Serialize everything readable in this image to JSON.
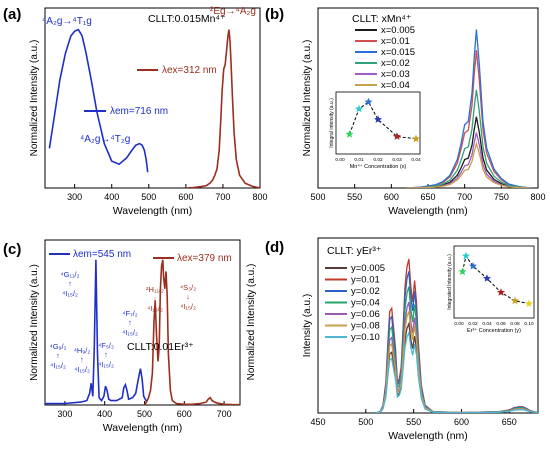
{
  "chart_data": [
    {
      "panel": "(a)",
      "type": "line",
      "annotation": "CLLT:0.015Mn⁴⁺",
      "xlabel": "Wavelength (nm)",
      "ylabel": "Normalized Intensity (a.u.)",
      "xlim": [
        220,
        800
      ],
      "xticks": [
        300,
        400,
        500,
        600,
        700,
        800
      ],
      "series": [
        {
          "name": "λem=716 nm",
          "color": "#1f2fc8",
          "x": [
            232,
            245,
            260,
            275,
            290,
            300,
            310,
            320,
            330,
            345,
            360,
            380,
            400,
            420,
            440,
            455,
            465,
            475,
            482,
            488,
            493,
            497
          ],
          "y": [
            0.25,
            0.45,
            0.68,
            0.85,
            0.96,
            0.99,
            1.0,
            0.96,
            0.86,
            0.68,
            0.48,
            0.28,
            0.17,
            0.15,
            0.19,
            0.24,
            0.27,
            0.28,
            0.27,
            0.24,
            0.18,
            0.1
          ]
        },
        {
          "name": "λex=312 nm",
          "color": "#9b2e1c",
          "x": [
            600,
            620,
            640,
            655,
            665,
            672,
            678,
            684,
            690,
            694,
            698,
            702,
            706,
            710,
            713,
            716,
            719,
            722,
            726,
            730,
            736,
            745,
            760,
            780,
            800
          ],
          "y": [
            0,
            0.003,
            0.008,
            0.015,
            0.03,
            0.05,
            0.08,
            0.12,
            0.24,
            0.42,
            0.62,
            0.75,
            0.78,
            0.87,
            0.95,
            1.0,
            0.93,
            0.78,
            0.55,
            0.35,
            0.18,
            0.08,
            0.03,
            0.01,
            0
          ]
        }
      ],
      "labels": [
        "⁴A₂g→⁴T₁g",
        "⁴A₂g→⁴T₂g",
        "²Eg→⁴A₂g"
      ]
    },
    {
      "panel": "(b)",
      "type": "line",
      "legend_title": "CLLT: xMn⁴⁺",
      "xlabel": "Wavelength (nm)",
      "ylabel": "Normalized Intensity (a.u.)",
      "xlim": [
        500,
        800
      ],
      "xticks": [
        500,
        550,
        600,
        650,
        700,
        750,
        800
      ],
      "x": [
        620,
        640,
        660,
        670,
        680,
        690,
        695,
        700,
        705,
        710,
        713,
        716,
        720,
        725,
        730,
        740,
        750,
        760,
        775,
        790
      ],
      "shape": [
        0,
        0.005,
        0.02,
        0.04,
        0.08,
        0.18,
        0.28,
        0.4,
        0.42,
        0.6,
        0.82,
        1.0,
        0.78,
        0.42,
        0.25,
        0.12,
        0.06,
        0.025,
        0.008,
        0
      ],
      "series": [
        {
          "name": "x=0.005",
          "color": "#1a1a1a",
          "peak": 0.45
        },
        {
          "name": "x=0.01",
          "color": "#d14f4f",
          "peak": 0.87
        },
        {
          "name": "x=0.015",
          "color": "#2c6fd6",
          "peak": 1.0
        },
        {
          "name": "x=0.02",
          "color": "#2fa37a",
          "peak": 0.62
        },
        {
          "name": "x=0.03",
          "color": "#a25cc8",
          "peak": 0.35
        },
        {
          "name": "x=0.04",
          "color": "#c9a04a",
          "peak": 0.28
        }
      ],
      "inset": {
        "xlabel": "Mn⁴⁺ Concentration (x)",
        "ylabel": "Integral intensity (a.u.)",
        "xticks": [
          "0.00",
          "0.01",
          "0.02",
          "0.03",
          "0.04"
        ],
        "x": [
          0.005,
          0.01,
          0.015,
          0.02,
          0.03,
          0.04
        ],
        "y": [
          0.3,
          0.85,
          1.0,
          0.62,
          0.25,
          0.2
        ],
        "colors": [
          "#2fd35a",
          "#2fc8d8",
          "#2c6fd6",
          "#2a3bb8",
          "#b22020",
          "#c9a020"
        ]
      }
    },
    {
      "panel": "(c)",
      "type": "line",
      "annotation": "CLLT:0.01Er³⁺",
      "xlabel": "Wavelength (nm)",
      "ylabel": "Normalized Intensity (a.u.)",
      "xlim": [
        250,
        740
      ],
      "xticks": [
        300,
        400,
        500,
        600,
        700
      ],
      "series": [
        {
          "name": "λem=545 nm",
          "color": "#1f2fc8",
          "x": [
            250,
            300,
            340,
            355,
            362,
            366,
            370,
            374,
            378,
            382,
            386,
            392,
            398,
            402,
            406,
            410,
            416,
            430,
            444,
            448,
            452,
            456,
            460,
            470,
            478,
            486,
            490,
            494,
            498,
            506
          ],
          "y": [
            0.01,
            0.01,
            0.02,
            0.03,
            0.08,
            0.15,
            0.06,
            0.4,
            1.0,
            0.35,
            0.05,
            0.03,
            0.06,
            0.13,
            0.1,
            0.04,
            0.03,
            0.03,
            0.05,
            0.12,
            0.14,
            0.1,
            0.04,
            0.05,
            0.08,
            0.2,
            0.25,
            0.18,
            0.06,
            0.02
          ]
        },
        {
          "name": "λex=379 nm",
          "color": "#9b2e1c",
          "x": [
            500,
            505,
            510,
            515,
            520,
            524,
            527,
            530,
            534,
            537,
            540,
            543,
            546,
            548,
            551,
            554,
            557,
            560,
            565,
            570,
            580,
            600,
            620,
            640,
            655,
            660,
            665,
            670,
            680,
            700,
            720,
            740
          ],
          "y": [
            0,
            0.02,
            0.05,
            0.1,
            0.22,
            0.58,
            0.72,
            0.5,
            0.3,
            0.4,
            0.8,
            0.96,
            1.0,
            0.88,
            0.8,
            0.92,
            0.75,
            0.35,
            0.1,
            0.03,
            0.01,
            0.005,
            0.005,
            0.01,
            0.02,
            0.04,
            0.05,
            0.03,
            0.015,
            0.005,
            0.003,
            0.002
          ]
        }
      ],
      "labels": [
        "⁴G₁₁/₂",
        "⁴I₁₅/₂",
        "⁴G₉/₂",
        "⁴I₁₅/₂",
        "⁴H₉/₂",
        "⁴I₁₅/₂",
        "⁴F₅/₂",
        "⁴I₁₅/₂",
        "⁴F₇/₂",
        "⁴I₁₅/₂",
        "²H₁₁/₂",
        "⁴I₁₅/₂",
        "⁴S₃/₂",
        "⁴I₁₅/₂"
      ]
    },
    {
      "panel": "(d)",
      "type": "line",
      "legend_title": "CLLT: yEr³⁺",
      "xlabel": "Wavelength (nm)",
      "ylabel": "Intensity (a.u.)",
      "xlim": [
        450,
        680
      ],
      "xticks": [
        450,
        500,
        550,
        600,
        650
      ],
      "x": [
        510,
        515,
        518,
        521,
        523,
        525,
        527,
        529,
        531,
        533,
        535,
        537,
        539,
        541,
        543,
        545,
        547,
        549,
        551,
        553,
        555,
        558,
        562,
        570,
        600,
        640,
        650,
        655,
        660,
        664,
        668,
        672,
        680
      ],
      "shape": [
        0,
        0.01,
        0.05,
        0.2,
        0.45,
        0.66,
        0.68,
        0.55,
        0.42,
        0.2,
        0.22,
        0.3,
        0.55,
        0.82,
        0.95,
        1.0,
        0.82,
        0.72,
        0.86,
        0.72,
        0.45,
        0.18,
        0.05,
        0.01,
        0.003,
        0.01,
        0.02,
        0.035,
        0.04,
        0.04,
        0.03,
        0.015,
        0.003
      ],
      "series": [
        {
          "name": "y=0.005",
          "color": "#5a3a3a",
          "peak": 0.58
        },
        {
          "name": "y=0.01",
          "color": "#c0392b",
          "peak": 1.0
        },
        {
          "name": "y=0.02",
          "color": "#2e5fc9",
          "peak": 0.92
        },
        {
          "name": "y=0.04",
          "color": "#27a36b",
          "peak": 0.82
        },
        {
          "name": "y=0.06",
          "color": "#9b59b6",
          "peak": 0.72
        },
        {
          "name": "y=0.08",
          "color": "#c9a045",
          "peak": 0.66
        },
        {
          "name": "y=0.10",
          "color": "#4fb6d6",
          "peak": 0.52
        }
      ],
      "inset": {
        "xlabel": "Er³⁺ Concentration (y)",
        "ylabel": "Integrated Intensity (a.u.)",
        "xticks": [
          "0.00",
          "0.02",
          "0.04",
          "0.06",
          "0.08",
          "0.10"
        ],
        "x": [
          0.005,
          0.01,
          0.02,
          0.04,
          0.06,
          0.08,
          0.1
        ],
        "y": [
          0.72,
          1.0,
          0.82,
          0.6,
          0.35,
          0.2,
          0.15
        ],
        "colors": [
          "#2fd35a",
          "#2fc8d8",
          "#2c6fd6",
          "#2a3bb8",
          "#b22020",
          "#c9a020",
          "#e8d02a"
        ]
      }
    }
  ]
}
